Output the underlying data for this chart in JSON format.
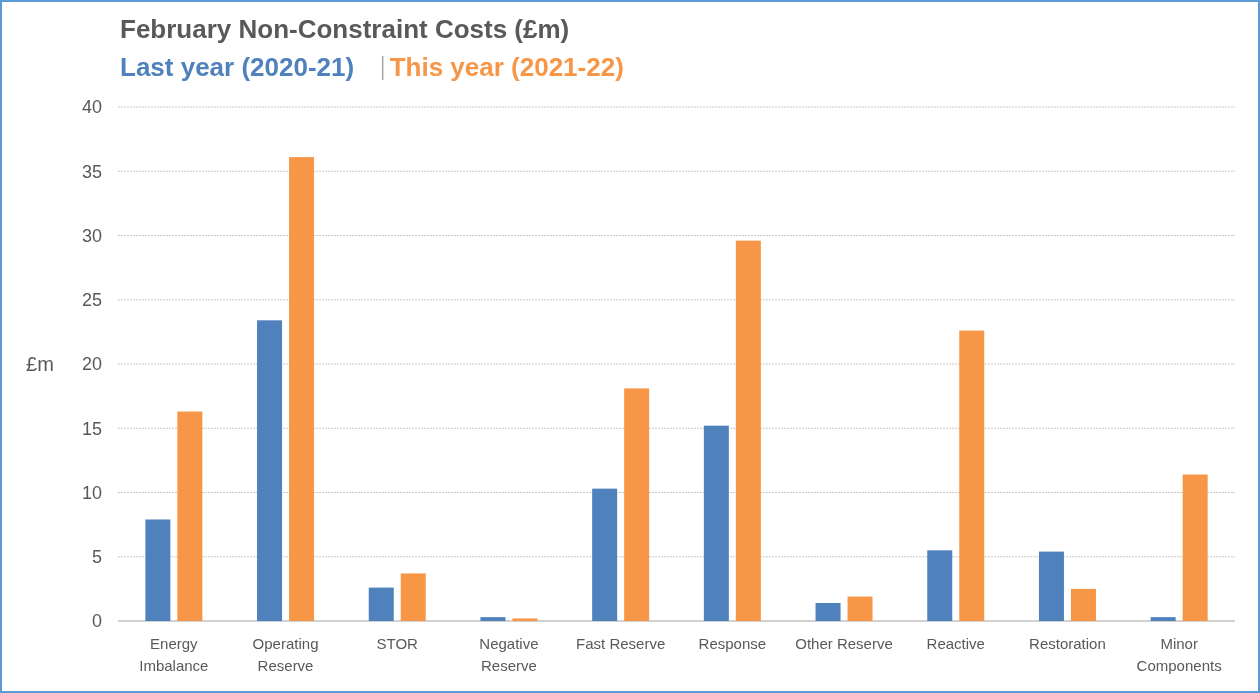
{
  "chart_data": {
    "type": "bar",
    "title": "February Non-Constraint Costs (£m)",
    "ylabel": "£m",
    "categories": [
      "Energy Imbalance",
      "Operating Reserve",
      "STOR",
      "Negative Reserve",
      "Fast Reserve",
      "Response",
      "Other Reserve",
      "Reactive",
      "Restoration",
      "Minor Components"
    ],
    "series": [
      {
        "name": "Last year (2020-21)",
        "color": "#4f81bd",
        "values": [
          7.9,
          23.4,
          2.6,
          0.3,
          10.3,
          15.2,
          1.4,
          5.5,
          5.4,
          0.3
        ]
      },
      {
        "name": "This year (2021-22)",
        "color": "#f79646",
        "values": [
          16.3,
          36.1,
          3.7,
          0.2,
          18.1,
          29.6,
          1.9,
          22.6,
          2.5,
          11.4
        ]
      }
    ],
    "ylim": [
      0,
      40
    ],
    "yticks": [
      0,
      5,
      10,
      15,
      20,
      25,
      30,
      35,
      40
    ],
    "grid": "y",
    "legend": "top left"
  }
}
